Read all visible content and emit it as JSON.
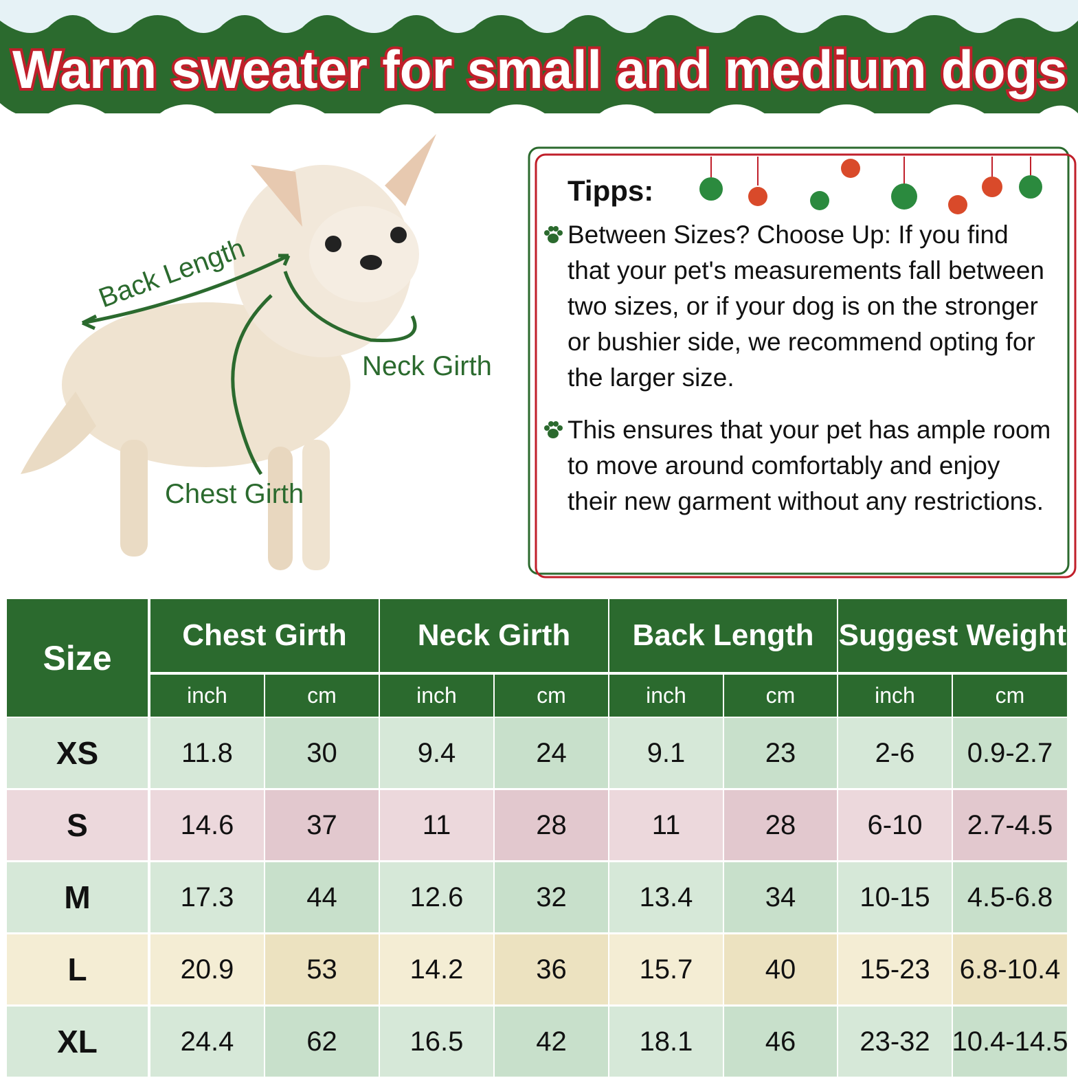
{
  "title": "Warm sweater for small and medium dogs",
  "diagram": {
    "back_length": "Back Length",
    "neck_girth": "Neck Girth",
    "chest_girth": "Chest Girth"
  },
  "tips": {
    "heading": "Tipps:",
    "items": [
      "Between Sizes? Choose Up: If you find that your pet's measurements fall between two sizes, or if your dog is on the stronger or bushier side, we recommend opting for the larger size.",
      "This ensures that your pet has ample room to move around comfortably and enjoy their new garment without any restrictions."
    ]
  },
  "table": {
    "size_header": "Size",
    "groups": [
      "Chest Girth",
      "Neck Girth",
      "Back Length",
      "Suggest Weight"
    ],
    "units": [
      "inch",
      "cm",
      "inch",
      "cm",
      "inch",
      "cm",
      "inch",
      "cm"
    ],
    "rows": [
      [
        "XS",
        "11.8",
        "30",
        "9.4",
        "24",
        "9.1",
        "23",
        "2-6",
        "0.9-2.7"
      ],
      [
        "S",
        "14.6",
        "37",
        "11",
        "28",
        "11",
        "28",
        "6-10",
        "2.7-4.5"
      ],
      [
        "M",
        "17.3",
        "44",
        "12.6",
        "32",
        "13.4",
        "34",
        "10-15",
        "4.5-6.8"
      ],
      [
        "L",
        "20.9",
        "53",
        "14.2",
        "36",
        "15.7",
        "40",
        "15-23",
        "6.8-10.4"
      ],
      [
        "XL",
        "24.4",
        "62",
        "16.5",
        "42",
        "18.1",
        "46",
        "23-32",
        "10.4-14.5"
      ]
    ]
  }
}
